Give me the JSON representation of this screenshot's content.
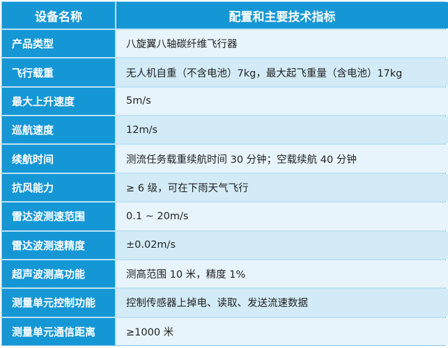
{
  "header": {
    "col1": "设备名称",
    "col2": "配置和主要技术指标"
  },
  "rows": [
    {
      "label": "产品类型",
      "value": "八旋翼八轴碳纤维飞行器"
    },
    {
      "label": "飞行载重",
      "value": "无人机自重（不含电池）7kg，最大起飞重量（含电池）17kg"
    },
    {
      "label": "最大上升速度",
      "value": "5m/s"
    },
    {
      "label": "巡航速度",
      "value": "12m/s"
    },
    {
      "label": "续航时间",
      "value": "测流任务载重续航时间 30 分钟；空载续航 40 分钟"
    },
    {
      "label": "抗风能力",
      "value": "≥ 6 级，可在下雨天气飞行"
    },
    {
      "label": "雷达波测速范围",
      "value": "0.1 ~ 20m/s"
    },
    {
      "label": "雷达波测速精度",
      "value": "±0.02m/s"
    },
    {
      "label": "超声波测高功能",
      "value": "测高范围 10 米，精度 1%"
    },
    {
      "label": "测量单元控制功能",
      "value": "控制传感器上掉电、读取、发送流速数据"
    },
    {
      "label": "测量单元通信距离",
      "value": "≥1000 米"
    }
  ]
}
